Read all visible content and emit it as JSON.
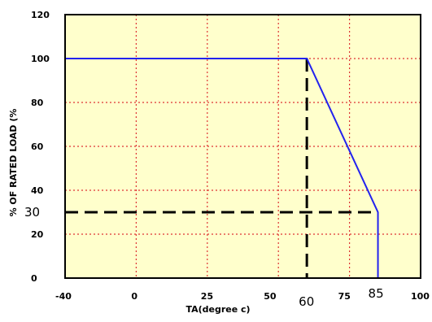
{
  "chart_data": {
    "type": "line",
    "xlabel": "TA(degree c)",
    "ylabel": "% OF RATED LOAD (%",
    "xlim": [
      -40,
      100
    ],
    "ylim": [
      0,
      120
    ],
    "grid": true,
    "x_ticks": [
      "-40",
      "0",
      "25",
      "50",
      "75",
      "100"
    ],
    "y_ticks": [
      "0",
      "20",
      "40",
      "60",
      "80",
      "100",
      "120"
    ],
    "extra_x_ticks": [
      "60",
      "85"
    ],
    "extra_y_ticks": [
      "30"
    ],
    "series": [
      {
        "style": "solid",
        "color": "#2222ee",
        "x": [
          -40,
          60,
          85,
          85
        ],
        "y": [
          100,
          100,
          30,
          0
        ]
      }
    ],
    "reference_lines": [
      {
        "style": "dashed",
        "color": "#000000",
        "x": [
          60,
          60
        ],
        "y": [
          100,
          0
        ]
      },
      {
        "style": "dashed",
        "color": "#000000",
        "x": [
          -40,
          85
        ],
        "y": [
          30,
          30
        ]
      }
    ],
    "colors": {
      "plot_background": "#ffffcc",
      "grid": "#dd3333",
      "frame": "#000000"
    }
  }
}
